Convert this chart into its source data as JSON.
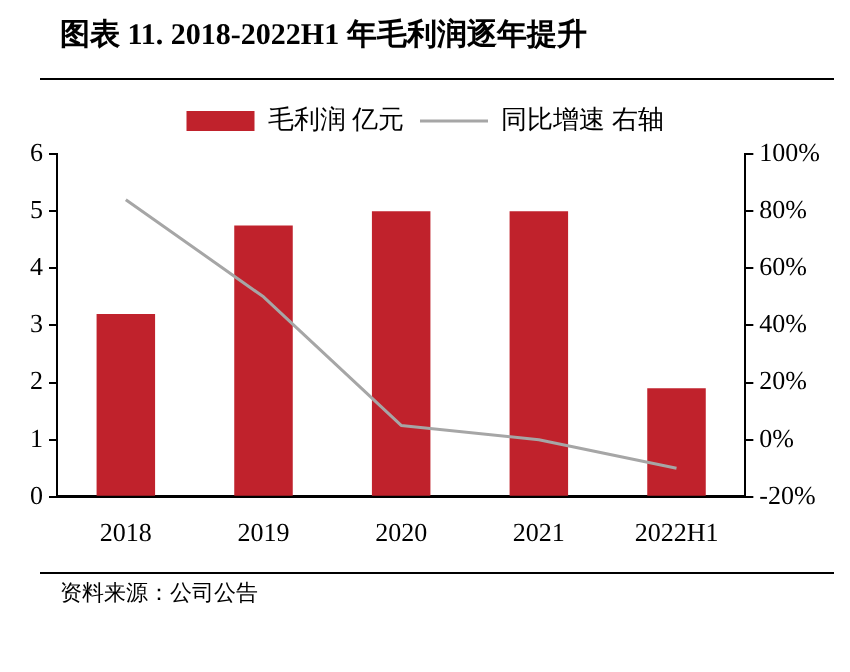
{
  "chart_data": {
    "type": "bar",
    "title": "图表 11. 2018-2022H1 年毛利润逐年提升",
    "categories": [
      "2018",
      "2019",
      "2020",
      "2021",
      "2022H1"
    ],
    "series": [
      {
        "name": "毛利润 亿元",
        "color": "#c0222c",
        "values": [
          3.2,
          4.75,
          5.0,
          5.0,
          1.9
        ]
      },
      {
        "name": "同比增速 右轴",
        "type": "line",
        "axis": "y2",
        "color": "#a6a6a6",
        "values": [
          84,
          50,
          5,
          0,
          -10
        ]
      }
    ],
    "ylim": [
      0,
      6
    ],
    "yticks": [
      0,
      1,
      2,
      3,
      4,
      5,
      6
    ],
    "y2lim": [
      -20,
      100
    ],
    "y2ticks": [
      {
        "value": -20,
        "label": "-20%"
      },
      {
        "value": 0,
        "label": "0%"
      },
      {
        "value": 20,
        "label": "20%"
      },
      {
        "value": 40,
        "label": "40%"
      },
      {
        "value": 60,
        "label": "60%"
      },
      {
        "value": 80,
        "label": "80%"
      },
      {
        "value": 100,
        "label": "100%"
      }
    ],
    "grid": false,
    "legend": "top",
    "marker": "none",
    "line_style": "solid",
    "annotations": [
      "资料来源：公司公告"
    ]
  }
}
